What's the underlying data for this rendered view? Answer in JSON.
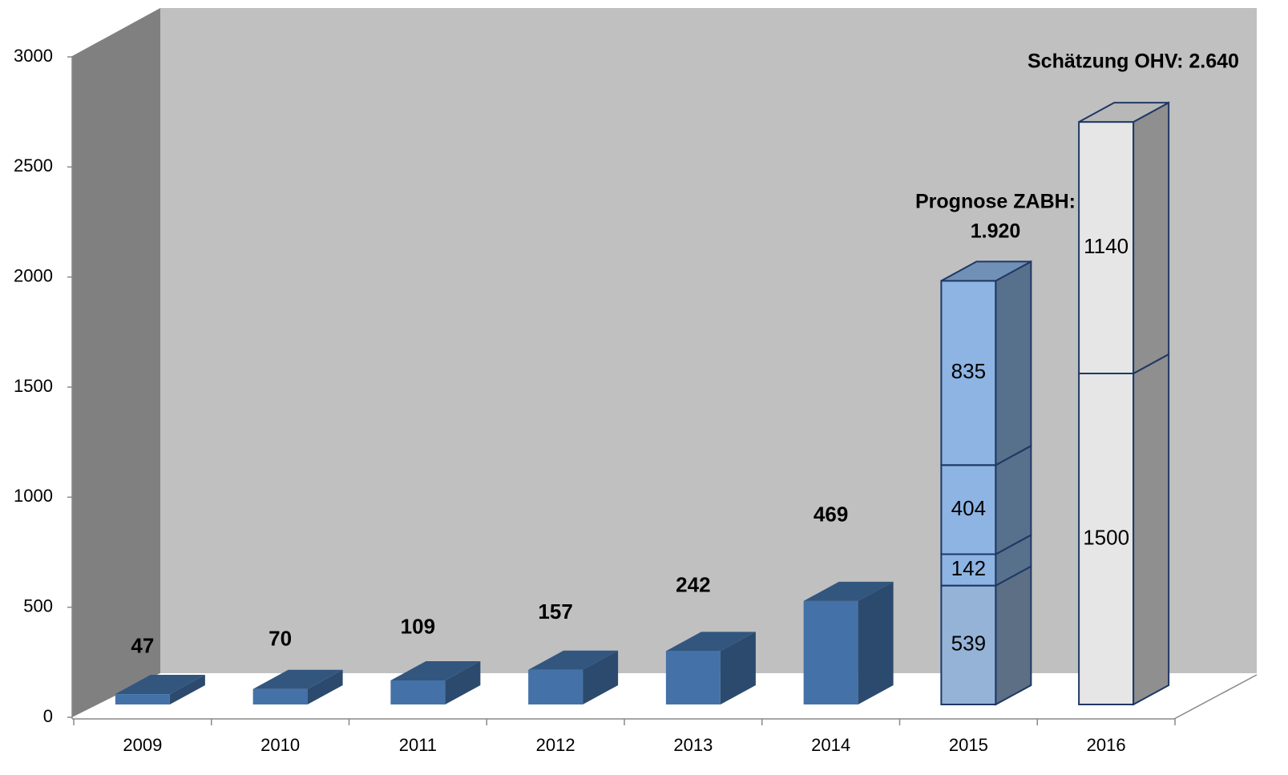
{
  "chart_data": {
    "type": "bar3d_stacked",
    "categories": [
      "2009",
      "2010",
      "2011",
      "2012",
      "2013",
      "2014",
      "2015",
      "2016"
    ],
    "series": [
      {
        "color": "#4472a8",
        "values": [
          47,
          70,
          109,
          157,
          242,
          469,
          null,
          null
        ]
      },
      {
        "color": "#95b3d7",
        "values": [
          null,
          null,
          null,
          null,
          null,
          null,
          539,
          null
        ]
      },
      {
        "color": "#8db4e2",
        "values": [
          null,
          null,
          null,
          null,
          null,
          null,
          142,
          null
        ]
      },
      {
        "color": "#8db4e2",
        "values": [
          null,
          null,
          null,
          null,
          null,
          null,
          404,
          null
        ]
      },
      {
        "color": "#8db4e2",
        "values": [
          null,
          null,
          null,
          null,
          null,
          null,
          835,
          null
        ]
      },
      {
        "color": "#e6e6e6",
        "values": [
          null,
          null,
          null,
          null,
          null,
          null,
          null,
          1500
        ]
      },
      {
        "color": "#e6e6e6",
        "values": [
          null,
          null,
          null,
          null,
          null,
          null,
          null,
          1140
        ]
      }
    ],
    "annotations": [
      {
        "lines": [
          "Prognose ZABH:",
          "1.920"
        ]
      },
      {
        "lines": [
          "Schätzung OHV: 2.640"
        ]
      }
    ],
    "ylim": [
      0,
      3000
    ],
    "yticks": [
      0,
      500,
      1000,
      1500,
      2000,
      2500,
      3000
    ]
  }
}
